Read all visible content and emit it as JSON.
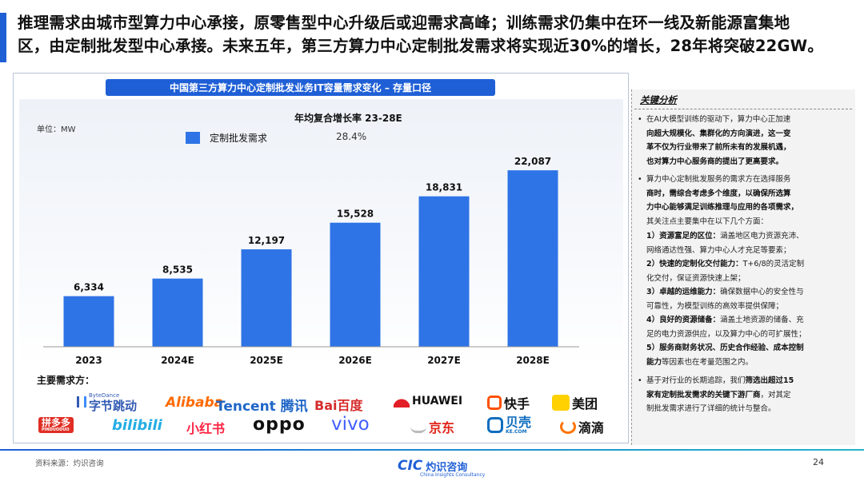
{
  "headline": {
    "line1": "推理需求由城市型算力中心承接，原零售型中心升级后或迎需求高峰；训练需求仍集中在环一线及新能源富集地",
    "line2": "区，由定制批发型中心承接。未来五年，第三方算力中心定制批发需求将实现近30%的增长，28年将突破22GW。"
  },
  "chart_header": "中国第三方算力中心定制批发业务IT容量需求变化 – 存量口径",
  "unit_label": "单位：MW",
  "cagr_title": "年均复合增长率 23-28E",
  "legend": {
    "series_name": "定制批发需求",
    "cagr_value": "28.4%"
  },
  "chart_data": {
    "type": "bar",
    "categories": [
      "2023",
      "2024E",
      "2025E",
      "2026E",
      "2027E",
      "2028E"
    ],
    "values": [
      6334,
      8535,
      12197,
      15528,
      18831,
      22087
    ],
    "value_labels": [
      "6,334",
      "8,535",
      "12,197",
      "15,528",
      "18,831",
      "22,087"
    ],
    "series": [
      {
        "name": "定制批发需求",
        "values": [
          6334,
          8535,
          12197,
          15528,
          18831,
          22087
        ]
      }
    ],
    "title": "中国第三方算力中心定制批发业务IT容量需求变化 – 存量口径",
    "ylabel": "单位：MW",
    "ylim": [
      0,
      25000
    ],
    "color": "#2f74e6",
    "grid": false
  },
  "demand_section": {
    "label": "主要需求方：",
    "logos_row1": [
      {
        "name": "ByteDance",
        "text": "字节跳动",
        "small": "ByteDance",
        "color": "#325ab4"
      },
      {
        "name": "Alibaba",
        "text": "Alibaba",
        "color": "#ff6a00"
      },
      {
        "name": "Tencent",
        "text": "Tencent 腾讯",
        "color": "#1f66c7"
      },
      {
        "name": "Baidu",
        "text": "Bai百度",
        "color": "#d62c2c"
      },
      {
        "name": "Huawei",
        "text": "HUAWEI",
        "color": "#111111"
      },
      {
        "name": "Kuaishou",
        "text": "快手",
        "color": "#111111"
      },
      {
        "name": "Meituan",
        "text": "美团",
        "color": "#111111"
      }
    ],
    "logos_row2": [
      {
        "name": "Pinduoduo",
        "text": "拼多多",
        "small": "PINDUODUO",
        "color": "#e02e24"
      },
      {
        "name": "Bilibili",
        "text": "bilibili",
        "color": "#23ade5"
      },
      {
        "name": "Xiaohongshu",
        "text": "小红书",
        "color": "#ff2442"
      },
      {
        "name": "OPPO",
        "text": "oppo",
        "color": "#111111"
      },
      {
        "name": "vivo",
        "text": "vivo",
        "color": "#415fff"
      },
      {
        "name": "JD",
        "text": "京东",
        "color": "#e1251b"
      },
      {
        "name": "Beike",
        "text": "贝壳",
        "small": "KE.COM",
        "color": "#0f6dbf"
      },
      {
        "name": "Didi",
        "text": "滴滴",
        "color": "#111111"
      }
    ]
  },
  "sidebar": {
    "title": "关键分析",
    "bullet1": {
      "lines": [
        "在AI大模型训练的驱动下，算力中心正加速",
        "向超大规模化、集群化的方向演进，这一变",
        "革不仅为行业带来了前所未有的发展机遇，",
        "也对算力中心服务商的提出了更高要求。"
      ]
    },
    "bullet2": {
      "lines": [
        "算力中心定制批发服务的需求方在选择服务",
        "商时，需综合考虑多个维度，以确保所选算",
        "力中心能够满足训练推理与应用的各项需求，",
        "其关注点主要集中在以下几个方面："
      ]
    },
    "items": [
      {
        "label": "1）资源富足的区位：",
        "text": "涵盖地区电力资源充沛、",
        "cont": "网络通达性强、算力中心人才充足等要素；"
      },
      {
        "label": "2）快速的定制化交付能力：",
        "text": "T+6/8的灵活定制",
        "cont": "化交付，保证资源快速上架；"
      },
      {
        "label": "3）卓越的运维能力：",
        "text": "确保数据中心的安全性与",
        "cont": "可靠性，为模型训练的高效率提供保障；"
      },
      {
        "label": "4）良好的资源储备：",
        "text": "涵盖土地资源的储备、充",
        "cont": "足的电力资源供应，以及算力中心的可扩展性；"
      },
      {
        "label": "5）服务商财务状况、历史合作经验、成本控制",
        "text": "",
        "cont_bold": "能力",
        "cont": "等因素也在考量范围之内。"
      }
    ],
    "bullet3": {
      "lines": [
        "基于对行业的长期追踪，我们",
        "筛选出超过15",
        "家有定制批发需求的关键下游厂商",
        "，对其定",
        "制批发需求进行了详细的统计与整合。"
      ]
    }
  },
  "footer": {
    "source": "资料来源：灼识咨询",
    "logo_cic": "CIC",
    "logo_zh": "灼识咨询",
    "logo_en": "China Insights Consultancy",
    "page_number": "24"
  }
}
